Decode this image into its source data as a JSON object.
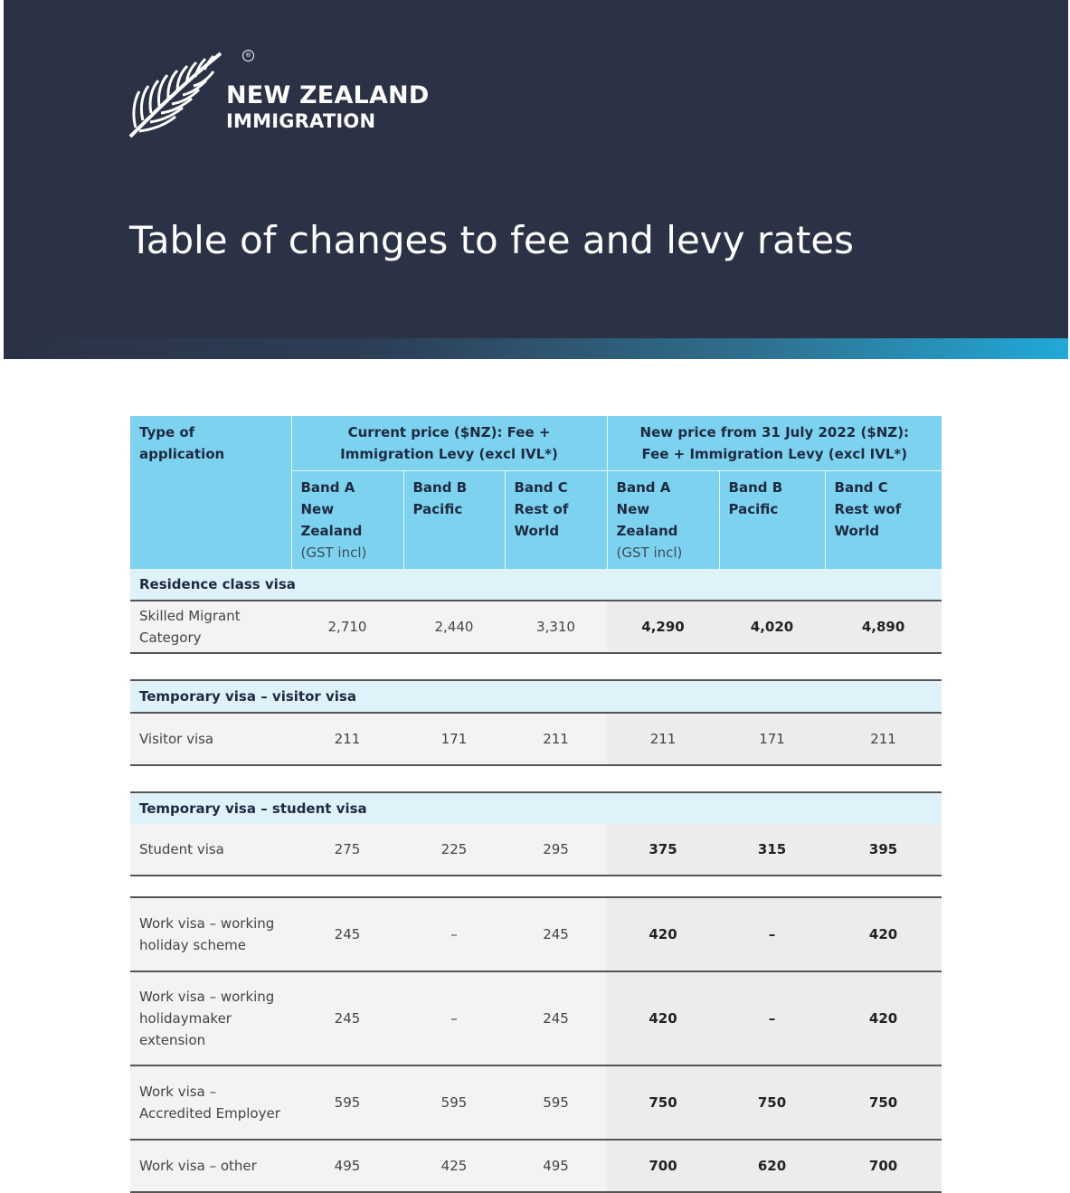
{
  "header": {
    "brand_line1": "NEW ZEALAND",
    "brand_line2": "IMMIGRATION",
    "registered_mark": "®",
    "title": "Table of changes to fee and levy rates"
  },
  "table": {
    "col_type": "Type of application",
    "group_current": "Current price ($NZ): Fee + Immigration Levy (excl IVL*)",
    "group_new": "New price from 31 July 2022 ($NZ): Fee + Immigration Levy (excl IVL*)",
    "bands": [
      {
        "name": "Band A",
        "region": "New Zealand",
        "note": "(GST incl)"
      },
      {
        "name": "Band B",
        "region": "Pacific",
        "note": ""
      },
      {
        "name": "Band C",
        "region": "Rest of World",
        "note": ""
      },
      {
        "name": "Band A",
        "region": "New Zealand",
        "note": "(GST incl)"
      },
      {
        "name": "Band B",
        "region": "Pacific",
        "note": ""
      },
      {
        "name": "Band C",
        "region": "Rest wof World",
        "note": ""
      }
    ],
    "sections": [
      {
        "title": "Residence class visa",
        "rows": [
          {
            "label": "Skilled Migrant Category",
            "values": [
              "2,710",
              "2,440",
              "3,310",
              "4,290",
              "4,020",
              "4,890"
            ]
          }
        ]
      },
      {
        "title": "Temporary visa – visitor visa",
        "rows": [
          {
            "label": "Visitor visa",
            "values": [
              "211",
              "171",
              "211",
              "211",
              "171",
              "211"
            ]
          }
        ]
      },
      {
        "title": "Temporary visa – student visa",
        "rows": [
          {
            "label": "Student visa",
            "values": [
              "275",
              "225",
              "295",
              "375",
              "315",
              "395"
            ]
          }
        ]
      },
      {
        "title": "",
        "rows": [
          {
            "label": "Work visa – working holiday scheme",
            "values": [
              "245",
              "–",
              "245",
              "420",
              "–",
              "420"
            ]
          },
          {
            "label": "Work visa – working holidaymaker extension",
            "values": [
              "245",
              "–",
              "245",
              "420",
              "–",
              "420"
            ]
          },
          {
            "label": "Work visa – Accredited Employer",
            "values": [
              "595",
              "595",
              "595",
              "750",
              "750",
              "750"
            ]
          },
          {
            "label": "Work visa – other",
            "values": [
              "495",
              "425",
              "495",
              "700",
              "620",
              "700"
            ]
          }
        ]
      }
    ]
  }
}
